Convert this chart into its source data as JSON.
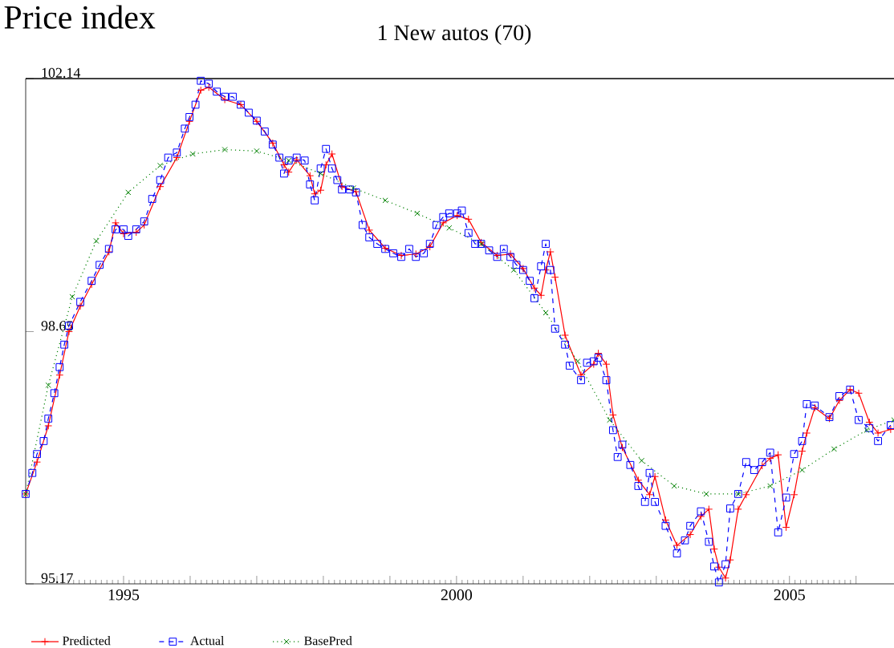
{
  "chart_data": {
    "type": "line",
    "title": "Price index",
    "subtitle": "1 New autos (70)",
    "xlim": [
      1993.53,
      2006.57
    ],
    "ylim": [
      95.17,
      102.14
    ],
    "xticks": [
      {
        "value": 1994,
        "label": null
      },
      1995,
      {
        "value": 1996,
        "label": null
      },
      {
        "value": 1997,
        "label": null
      },
      {
        "value": 1998,
        "label": null
      },
      {
        "value": 1999,
        "label": null
      },
      2000,
      {
        "value": 2001,
        "label": null
      },
      {
        "value": 2002,
        "label": null
      },
      {
        "value": 2003,
        "label": null
      },
      {
        "value": 2004,
        "label": null
      },
      2005,
      {
        "value": 2006,
        "label": null
      }
    ],
    "yticks": [
      95.17,
      98.65,
      102.14
    ],
    "legend": "bottom",
    "series": [
      {
        "name": "Predicted",
        "color": "#ff0000",
        "marker": "plus",
        "line_style": "solid",
        "x": [
          1993.53,
          1993.7,
          1993.87,
          1994.04,
          1994.18,
          1994.35,
          1994.52,
          1994.78,
          1994.88,
          1995.0,
          1995.19,
          1995.31,
          1995.55,
          1995.8,
          1995.99,
          1996.16,
          1996.28,
          1996.52,
          1996.76,
          1997.0,
          1997.24,
          1997.41,
          1997.48,
          1997.6,
          1997.8,
          1997.87,
          1997.96,
          1998.04,
          1998.13,
          1998.28,
          1998.49,
          1998.69,
          1998.93,
          1999.17,
          1999.39,
          1999.6,
          1999.8,
          2000.01,
          2000.18,
          2000.37,
          2000.61,
          2000.81,
          2001.0,
          2001.17,
          2001.27,
          2001.34,
          2001.41,
          2001.48,
          2001.63,
          2001.87,
          2002.06,
          2002.13,
          2002.25,
          2002.35,
          2002.49,
          2002.73,
          2002.9,
          2002.98,
          2003.14,
          2003.31,
          2003.51,
          2003.67,
          2003.79,
          2003.87,
          2003.94,
          2004.04,
          2004.11,
          2004.23,
          2004.35,
          2004.59,
          2004.71,
          2004.83,
          2004.95,
          2005.07,
          2005.19,
          2005.26,
          2005.38,
          2005.6,
          2005.75,
          2005.91,
          2006.04,
          2006.2,
          2006.33,
          2006.52
        ],
        "values": [
          96.41,
          96.85,
          97.35,
          98.05,
          98.65,
          99.0,
          99.3,
          99.75,
          100.15,
          100.0,
          100.02,
          100.12,
          100.65,
          101.05,
          101.55,
          101.98,
          102.02,
          101.85,
          101.78,
          101.55,
          101.25,
          100.95,
          100.85,
          101.02,
          100.8,
          100.55,
          100.6,
          100.95,
          101.1,
          100.65,
          100.58,
          100.05,
          99.8,
          99.7,
          99.72,
          99.82,
          100.15,
          100.25,
          100.2,
          99.88,
          99.7,
          99.72,
          99.52,
          99.25,
          99.15,
          99.5,
          99.75,
          99.4,
          98.6,
          98.05,
          98.2,
          98.35,
          98.2,
          97.5,
          97.05,
          96.6,
          96.4,
          96.65,
          96.05,
          95.7,
          95.85,
          96.1,
          96.2,
          95.65,
          95.4,
          95.25,
          95.5,
          96.2,
          96.4,
          96.8,
          96.9,
          96.95,
          95.95,
          96.4,
          97.0,
          97.25,
          97.6,
          97.45,
          97.7,
          97.85,
          97.8,
          97.4,
          97.25,
          97.3
        ]
      },
      {
        "name": "Actual",
        "color": "#0000ff",
        "marker": "square",
        "line_style": "dashed",
        "x": [
          1993.53,
          1993.63,
          1993.7,
          1993.8,
          1993.87,
          1993.96,
          1994.04,
          1994.11,
          1994.18,
          1994.35,
          1994.52,
          1994.64,
          1994.78,
          1994.88,
          1995.0,
          1995.07,
          1995.19,
          1995.31,
          1995.43,
          1995.55,
          1995.67,
          1995.8,
          1995.92,
          1995.99,
          1996.08,
          1996.16,
          1996.28,
          1996.4,
          1996.52,
          1996.64,
          1996.76,
          1996.88,
          1997.0,
          1997.12,
          1997.24,
          1997.34,
          1997.41,
          1997.48,
          1997.6,
          1997.72,
          1997.8,
          1997.87,
          1997.96,
          1998.04,
          1998.13,
          1998.21,
          1998.28,
          1998.4,
          1998.49,
          1998.59,
          1998.69,
          1998.81,
          1998.93,
          1999.05,
          1999.17,
          1999.29,
          1999.39,
          1999.51,
          1999.6,
          1999.7,
          1999.8,
          1999.89,
          2000.01,
          2000.08,
          2000.18,
          2000.28,
          2000.37,
          2000.49,
          2000.61,
          2000.71,
          2000.81,
          2000.9,
          2001.0,
          2001.1,
          2001.17,
          2001.27,
          2001.34,
          2001.41,
          2001.48,
          2001.63,
          2001.7,
          2001.87,
          2001.96,
          2002.06,
          2002.13,
          2002.25,
          2002.35,
          2002.42,
          2002.49,
          2002.61,
          2002.73,
          2002.83,
          2002.9,
          2002.98,
          2003.14,
          2003.31,
          2003.43,
          2003.51,
          2003.67,
          2003.79,
          2003.87,
          2003.94,
          2004.04,
          2004.11,
          2004.23,
          2004.35,
          2004.47,
          2004.59,
          2004.71,
          2004.83,
          2004.95,
          2005.07,
          2005.19,
          2005.26,
          2005.38,
          2005.6,
          2005.75,
          2005.91,
          2006.04,
          2006.2,
          2006.33,
          2006.52
        ],
        "values": [
          96.41,
          96.7,
          96.96,
          97.14,
          97.45,
          97.8,
          98.16,
          98.47,
          98.73,
          99.06,
          99.35,
          99.57,
          99.79,
          100.06,
          100.06,
          99.97,
          100.06,
          100.17,
          100.48,
          100.74,
          101.05,
          101.12,
          101.45,
          101.61,
          101.78,
          102.11,
          102.07,
          101.96,
          101.89,
          101.89,
          101.78,
          101.67,
          101.56,
          101.41,
          101.23,
          101.05,
          100.83,
          101.01,
          101.05,
          101.01,
          100.68,
          100.46,
          100.9,
          101.17,
          100.9,
          100.74,
          100.61,
          100.61,
          100.57,
          100.12,
          99.95,
          99.86,
          99.79,
          99.73,
          99.68,
          99.79,
          99.68,
          99.73,
          99.86,
          100.12,
          100.23,
          100.28,
          100.28,
          100.32,
          100.01,
          99.86,
          99.86,
          99.77,
          99.68,
          99.79,
          99.68,
          99.57,
          99.5,
          99.35,
          99.11,
          99.55,
          99.86,
          99.5,
          98.69,
          98.47,
          98.18,
          97.98,
          98.22,
          98.24,
          98.29,
          97.98,
          97.29,
          96.92,
          97.09,
          96.81,
          96.52,
          96.3,
          96.7,
          96.3,
          95.97,
          95.59,
          95.77,
          95.97,
          96.17,
          95.75,
          95.41,
          95.19,
          95.44,
          96.21,
          96.41,
          96.85,
          96.74,
          96.85,
          96.98,
          95.88,
          96.36,
          96.96,
          97.14,
          97.65,
          97.63,
          97.47,
          97.76,
          97.85,
          97.43,
          97.32,
          97.14,
          97.36
        ]
      },
      {
        "name": "BasePred",
        "color": "#008000",
        "marker": "cross",
        "line_style": "dotted",
        "x": [
          1993.53,
          1993.87,
          1994.23,
          1994.59,
          1995.07,
          1995.55,
          1996.04,
          1996.52,
          1997.0,
          1997.48,
          1997.96,
          1998.45,
          1998.93,
          1999.41,
          1999.89,
          2000.37,
          2000.86,
          2001.34,
          2001.82,
          2002.3,
          2002.78,
          2003.27,
          2003.75,
          2004.23,
          2004.71,
          2005.19,
          2005.67,
          2006.16,
          2006.57
        ],
        "values": [
          96.41,
          97.91,
          99.13,
          99.9,
          100.57,
          100.94,
          101.1,
          101.16,
          101.14,
          101.01,
          100.83,
          100.63,
          100.46,
          100.28,
          100.08,
          99.86,
          99.5,
          98.91,
          98.24,
          97.43,
          96.87,
          96.52,
          96.41,
          96.41,
          96.52,
          96.74,
          97.03,
          97.29,
          97.43
        ]
      }
    ]
  }
}
